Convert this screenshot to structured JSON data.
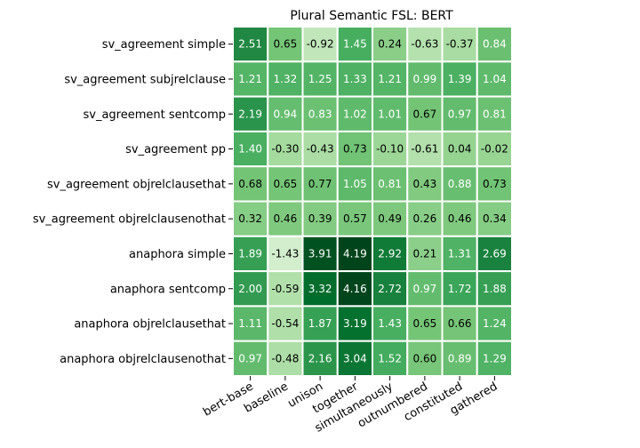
{
  "chart_data": {
    "type": "heatmap",
    "title": "Plural Semantic FSL: BERT",
    "xlabel": "",
    "ylabel": "",
    "rows": [
      "sv_agreement simple",
      "sv_agreement subjrelclause",
      "sv_agreement sentcomp",
      "sv_agreement pp",
      "sv_agreement objrelclausethat",
      "sv_agreement objrelclausenothat",
      "anaphora simple",
      "anaphora sentcomp",
      "anaphora objrelclausethat",
      "anaphora objrelclausenothat"
    ],
    "columns": [
      "bert-base",
      "baseline",
      "unison",
      "together",
      "simultaneously",
      "outnumbered",
      "constituted",
      "gathered"
    ],
    "values": [
      [
        2.51,
        0.65,
        -0.92,
        1.45,
        0.24,
        -0.63,
        -0.37,
        0.84
      ],
      [
        1.21,
        1.32,
        1.25,
        1.33,
        1.21,
        0.99,
        1.39,
        1.04
      ],
      [
        2.19,
        0.94,
        0.83,
        1.02,
        1.01,
        0.67,
        0.97,
        0.81
      ],
      [
        1.4,
        -0.3,
        -0.43,
        0.73,
        -0.1,
        -0.61,
        0.04,
        -0.02
      ],
      [
        0.68,
        0.65,
        0.77,
        1.05,
        0.81,
        0.43,
        0.88,
        0.73
      ],
      [
        0.32,
        0.46,
        0.39,
        0.57,
        0.49,
        0.26,
        0.46,
        0.34
      ],
      [
        1.89,
        -1.43,
        3.91,
        4.19,
        2.92,
        0.21,
        1.31,
        2.69
      ],
      [
        2.0,
        -0.59,
        3.32,
        4.16,
        2.72,
        0.97,
        1.72,
        1.88
      ],
      [
        1.11,
        -0.54,
        1.87,
        3.19,
        1.43,
        0.65,
        0.66,
        1.24
      ],
      [
        0.97,
        -0.48,
        2.16,
        3.04,
        1.52,
        0.6,
        0.89,
        1.29
      ]
    ],
    "colormap": "Greens",
    "vmin": -1.43,
    "vmax": 4.19,
    "annotated": true,
    "colorbar": false
  }
}
